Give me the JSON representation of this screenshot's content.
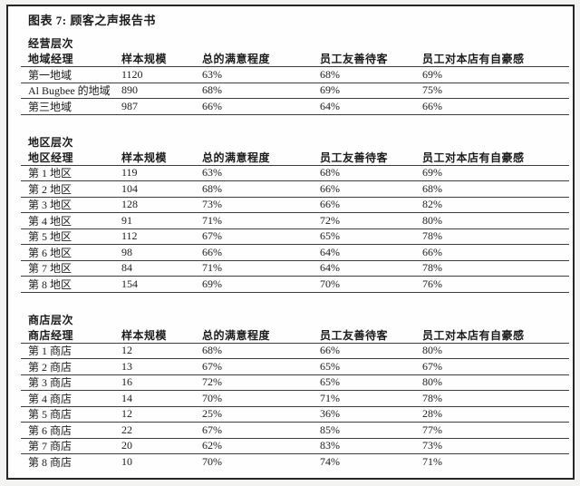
{
  "page": {
    "title": "图表 7: 顾客之声报告书"
  },
  "columns": [
    "样本规模",
    "总的满意程度",
    "员工友善待客",
    "员工对本店有自豪感"
  ],
  "sections": [
    {
      "level": "经营层次",
      "manager": "地域经理",
      "rows": [
        {
          "name": "第一地域",
          "sample": "1120",
          "satisfaction": "63%",
          "friendly": "68%",
          "pride": "69%"
        },
        {
          "name": "Al Bugbee 的地域",
          "sample": "890",
          "satisfaction": "68%",
          "friendly": "69%",
          "pride": "75%"
        },
        {
          "name": "第三地域",
          "sample": "987",
          "satisfaction": "66%",
          "friendly": "64%",
          "pride": "66%"
        }
      ]
    },
    {
      "level": "地区层次",
      "manager": "地区经理",
      "rows": [
        {
          "name": "第 1 地区",
          "sample": "119",
          "satisfaction": "63%",
          "friendly": "68%",
          "pride": "69%"
        },
        {
          "name": "第 2 地区",
          "sample": "104",
          "satisfaction": "68%",
          "friendly": "66%",
          "pride": "68%"
        },
        {
          "name": "第 3 地区",
          "sample": "128",
          "satisfaction": "73%",
          "friendly": "66%",
          "pride": "82%"
        },
        {
          "name": "第 4 地区",
          "sample": "91",
          "satisfaction": "71%",
          "friendly": "72%",
          "pride": "80%"
        },
        {
          "name": "第 5 地区",
          "sample": "112",
          "satisfaction": "67%",
          "friendly": "65%",
          "pride": "78%"
        },
        {
          "name": "第 6 地区",
          "sample": "98",
          "satisfaction": "66%",
          "friendly": "64%",
          "pride": "66%"
        },
        {
          "name": "第 7 地区",
          "sample": "84",
          "satisfaction": "71%",
          "friendly": "64%",
          "pride": "78%"
        },
        {
          "name": "第 8 地区",
          "sample": "154",
          "satisfaction": "69%",
          "friendly": "70%",
          "pride": "76%"
        }
      ]
    },
    {
      "level": "商店层次",
      "manager": "商店经理",
      "rows": [
        {
          "name": "第 1 商店",
          "sample": "12",
          "satisfaction": "68%",
          "friendly": "66%",
          "pride": "80%"
        },
        {
          "name": "第 2 商店",
          "sample": "13",
          "satisfaction": "67%",
          "friendly": "65%",
          "pride": "67%"
        },
        {
          "name": "第 3 商店",
          "sample": "16",
          "satisfaction": "72%",
          "friendly": "65%",
          "pride": "80%"
        },
        {
          "name": "第 4 商店",
          "sample": "14",
          "satisfaction": "70%",
          "friendly": "71%",
          "pride": "78%"
        },
        {
          "name": "第 5 商店",
          "sample": "12",
          "satisfaction": "25%",
          "friendly": "36%",
          "pride": "28%"
        },
        {
          "name": "第 6 商店",
          "sample": "22",
          "satisfaction": "67%",
          "friendly": "85%",
          "pride": "77%"
        },
        {
          "name": "第 7 商店",
          "sample": "20",
          "satisfaction": "62%",
          "friendly": "83%",
          "pride": "73%"
        },
        {
          "name": "第 8 商店",
          "sample": "10",
          "satisfaction": "70%",
          "friendly": "74%",
          "pride": "71%"
        }
      ]
    }
  ]
}
